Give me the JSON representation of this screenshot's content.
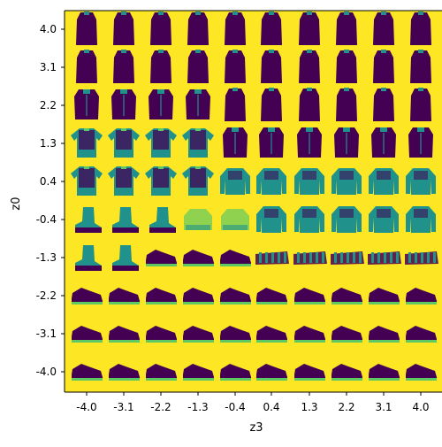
{
  "chart_data": {
    "type": "heatmap",
    "subtype": "latent-space-image-grid",
    "title": "",
    "xlabel": "z3",
    "ylabel": "z0",
    "x_ticks": [
      "-4.0",
      "-3.1",
      "-2.2",
      "-1.3",
      "-0.4",
      "0.4",
      "1.3",
      "2.2",
      "3.1",
      "4.0"
    ],
    "y_ticks": [
      "4.0",
      "3.1",
      "2.2",
      "1.3",
      "0.4",
      "-0.4",
      "-1.3",
      "-2.2",
      "-3.1",
      "-4.0"
    ],
    "grid": false,
    "colormap": "viridis",
    "colors": {
      "background": "#fde725",
      "ink": "#440154",
      "mid": "#21918c",
      "mid_light": "#5ec962"
    },
    "cells": [
      [
        "dress",
        "dress",
        "dress",
        "dress",
        "dress",
        "dress",
        "dress",
        "dress",
        "dress",
        "dress"
      ],
      [
        "dress",
        "dress",
        "dress",
        "dress",
        "dress",
        "dress",
        "dress",
        "dress",
        "dress",
        "dress"
      ],
      [
        "shirt",
        "shirt",
        "shirt",
        "shirt",
        "dress",
        "dress",
        "dress",
        "dress",
        "dress",
        "dress"
      ],
      [
        "tshirt",
        "tshirt",
        "tshirt",
        "tshirt",
        "shirt",
        "shirt",
        "shirt",
        "shirt",
        "shirt",
        "shirt"
      ],
      [
        "tshirt",
        "tshirt",
        "tshirt",
        "tshirt",
        "pullover",
        "pullover",
        "pullover",
        "pullover",
        "pullover",
        "pullover"
      ],
      [
        "boot",
        "boot",
        "boot",
        "faint",
        "faint",
        "pullover",
        "pullover",
        "pullover",
        "pullover",
        "pullover"
      ],
      [
        "boot",
        "boot",
        "sneaker",
        "sneaker",
        "sneaker",
        "sandal",
        "sandal",
        "sandal",
        "sandal",
        "sandal"
      ],
      [
        "sneaker",
        "sneaker",
        "sneaker",
        "sneaker",
        "sneaker",
        "sneaker",
        "sneaker",
        "sneaker",
        "sneaker",
        "sneaker"
      ],
      [
        "sneaker",
        "sneaker",
        "sneaker",
        "sneaker",
        "sneaker",
        "sneaker",
        "sneaker",
        "sneaker",
        "sneaker",
        "sneaker"
      ],
      [
        "sneaker",
        "sneaker",
        "sneaker",
        "sneaker",
        "sneaker",
        "sneaker",
        "sneaker",
        "sneaker",
        "sneaker",
        "sneaker"
      ]
    ]
  }
}
